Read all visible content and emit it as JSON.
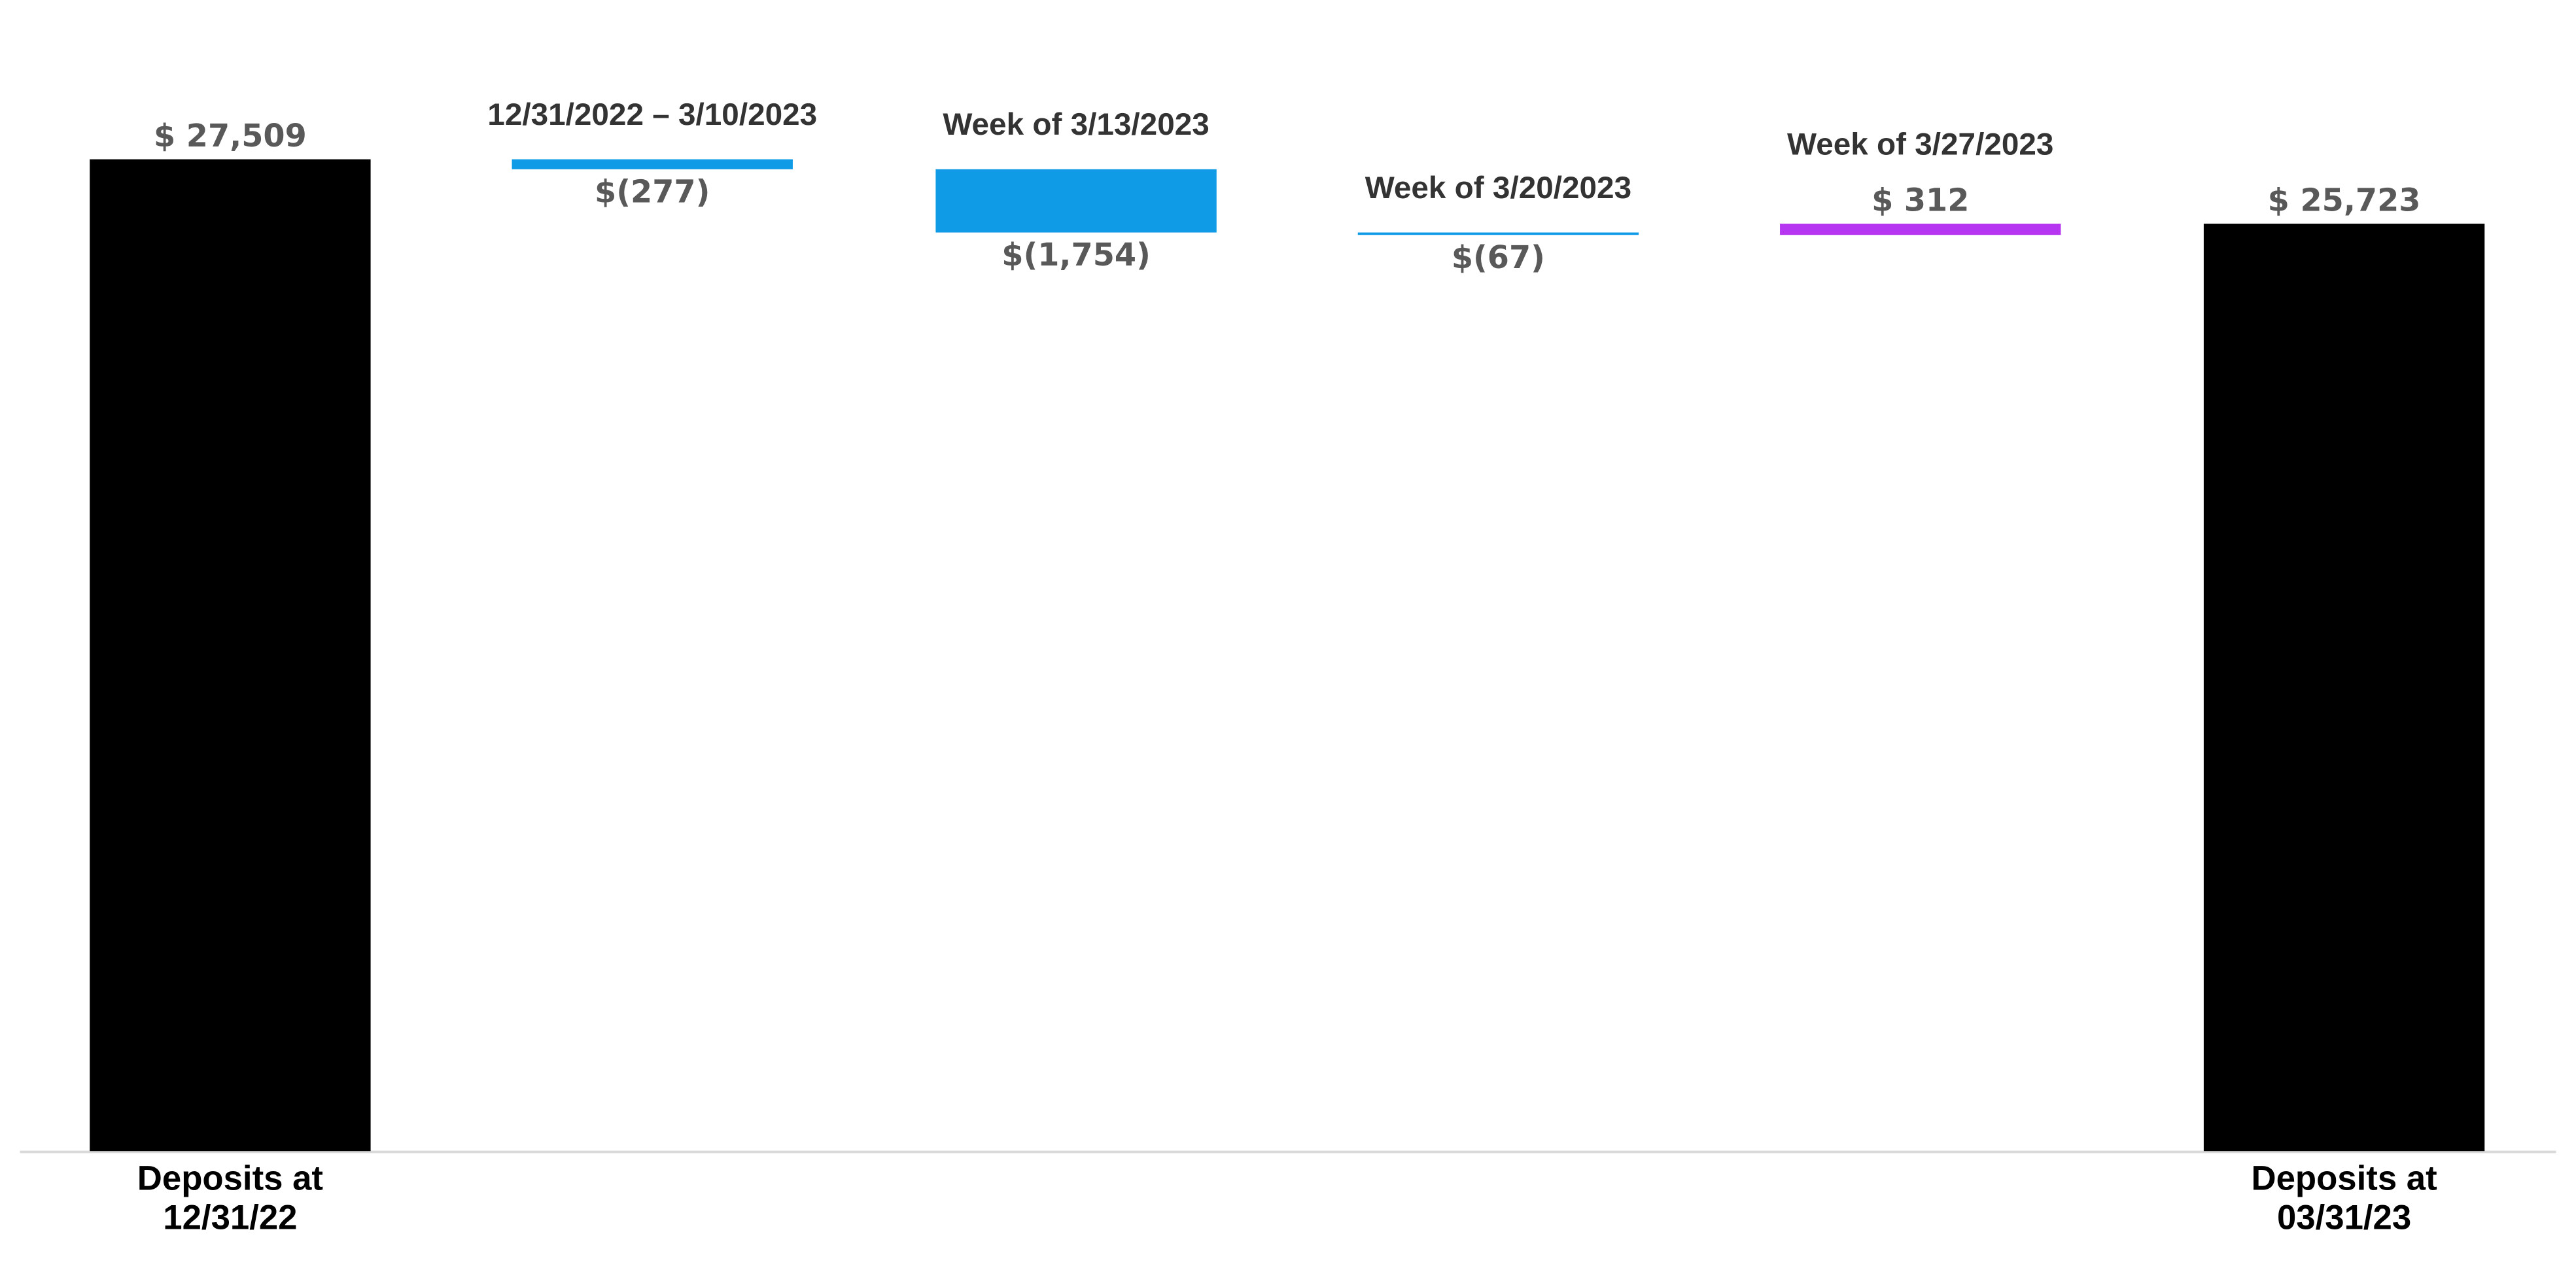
{
  "chart_data": {
    "type": "waterfall",
    "categories": [
      "Deposits at\n12/31/22",
      "12/31/2022 – 3/10/2023",
      "Week of 3/13/2023",
      "Week of 3/20/2023",
      "Week of 3/27/2023",
      "Deposits at\n03/31/23"
    ],
    "values": [
      27509,
      -277,
      -1754,
      -67,
      312,
      25723
    ],
    "value_labels": [
      "$ 27,509",
      "$(277)",
      "$(1,754)",
      "$(67)",
      "$ 312",
      "$ 25,723"
    ],
    "colors": [
      "#000000",
      "#0f9be6",
      "#0f9be6",
      "#0f9be6",
      "#b535f0",
      "#000000"
    ]
  }
}
